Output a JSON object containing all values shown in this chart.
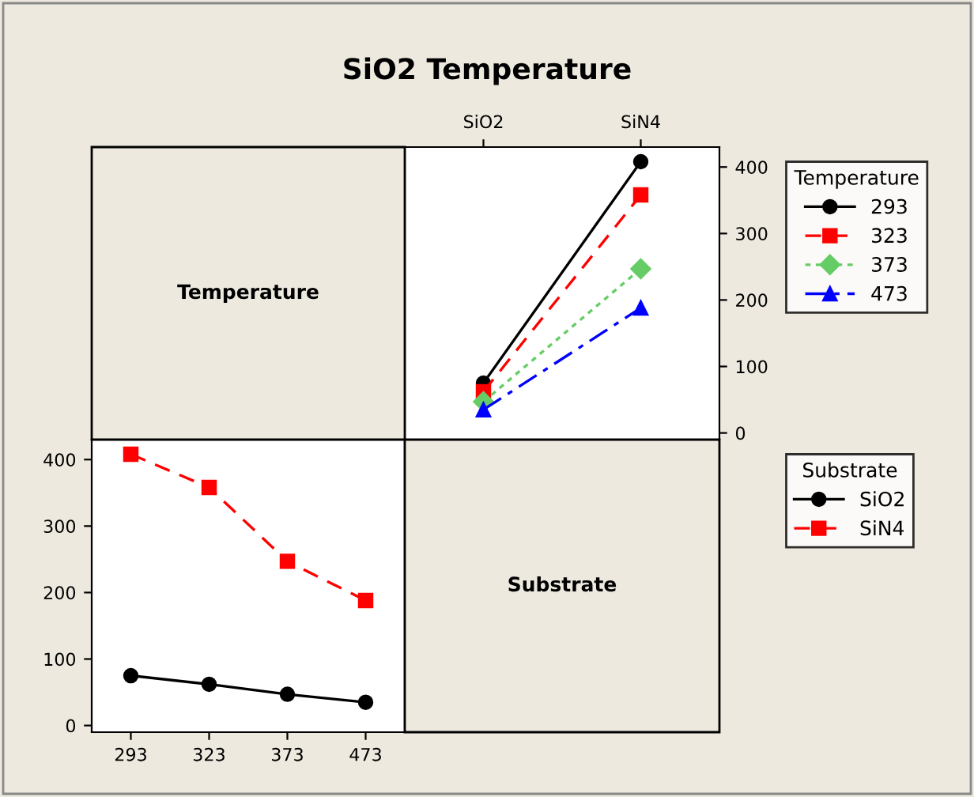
{
  "chart_data": [
    {
      "type": "other",
      "title": "SiO2 Temperature",
      "annotations": [
        "Temperature"
      ]
    },
    {
      "type": "line",
      "categories": [
        "SiO2",
        "SiN4"
      ],
      "ylim": [
        -10,
        430
      ],
      "yticks": [
        0,
        100,
        200,
        300,
        400
      ],
      "grid": false,
      "legend": "right",
      "legend_title": "Temperature",
      "series": [
        {
          "name": "293",
          "color": "#000000",
          "marker": "circle",
          "line_style": "solid",
          "values": [
            75,
            408
          ]
        },
        {
          "name": "323",
          "color": "#ff0000",
          "marker": "square",
          "line_style": "dashed",
          "values": [
            62,
            358
          ]
        },
        {
          "name": "373",
          "color": "#66cc66",
          "marker": "diamond",
          "line_style": "dotted",
          "values": [
            47,
            247
          ]
        },
        {
          "name": "473",
          "color": "#0000ff",
          "marker": "triangle",
          "line_style": "dashdot",
          "values": [
            35,
            188
          ]
        }
      ]
    },
    {
      "type": "line",
      "categories": [
        "293",
        "323",
        "373",
        "473"
      ],
      "ylim": [
        -10,
        430
      ],
      "yticks": [
        0,
        100,
        200,
        300,
        400
      ],
      "grid": false,
      "legend": "right",
      "legend_title": "Substrate",
      "series": [
        {
          "name": "SiO2",
          "color": "#000000",
          "marker": "circle",
          "line_style": "solid",
          "values": [
            75,
            62,
            47,
            35
          ]
        },
        {
          "name": "SiN4",
          "color": "#ff0000",
          "marker": "square",
          "line_style": "dashed",
          "values": [
            408,
            358,
            247,
            188
          ]
        }
      ]
    },
    {
      "type": "other",
      "annotations": [
        "Substrate"
      ]
    }
  ]
}
